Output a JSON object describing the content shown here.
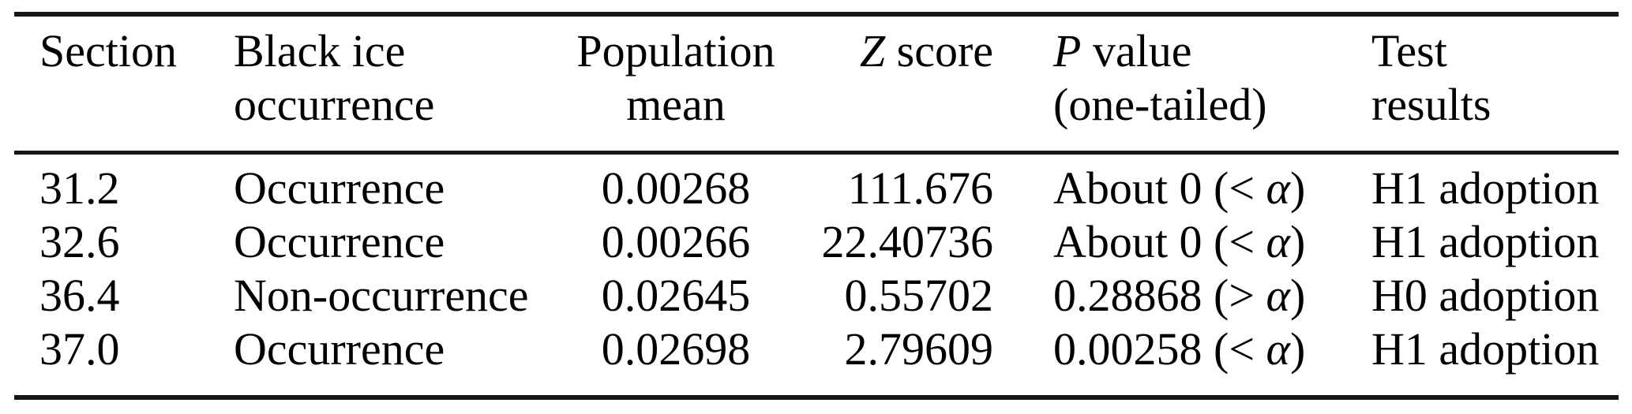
{
  "colors": {
    "background": "#ffffff",
    "text": "#000000",
    "rule": "#161616"
  },
  "table": {
    "header": {
      "section": {
        "line1": "Section"
      },
      "black_ice": {
        "line1": "Black ice",
        "line2": "occurrence"
      },
      "population": {
        "line1": "Population",
        "line2": "mean"
      },
      "z_score": {
        "symbol": "Z",
        "rest": " score"
      },
      "p_value": {
        "symbol": "P",
        "rest": " value",
        "line2": "(one-tailed)"
      },
      "test_results": {
        "line1": "Test",
        "line2": "results"
      }
    },
    "rows": [
      {
        "section": "31.2",
        "black_ice": "Occurrence",
        "population_mean": "0.00268",
        "z_score": "111.676",
        "p_value": {
          "pre": "About 0 (< ",
          "alpha": "α",
          "post": ")"
        },
        "test_result": "H1 adoption"
      },
      {
        "section": "32.6",
        "black_ice": "Occurrence",
        "population_mean": "0.00266",
        "z_score": "22.40736",
        "p_value": {
          "pre": "About 0 (< ",
          "alpha": "α",
          "post": ")"
        },
        "test_result": "H1 adoption"
      },
      {
        "section": "36.4",
        "black_ice": "Non-occurrence",
        "population_mean": "0.02645",
        "z_score": "0.55702",
        "p_value": {
          "pre": "0.28868 (> ",
          "alpha": "α",
          "post": ")"
        },
        "test_result": "H0 adoption"
      },
      {
        "section": "37.0",
        "black_ice": "Occurrence",
        "population_mean": "0.02698",
        "z_score": "2.79609",
        "p_value": {
          "pre": "0.00258 (< ",
          "alpha": "α",
          "post": ")"
        },
        "test_result": "H1 adoption"
      }
    ]
  }
}
